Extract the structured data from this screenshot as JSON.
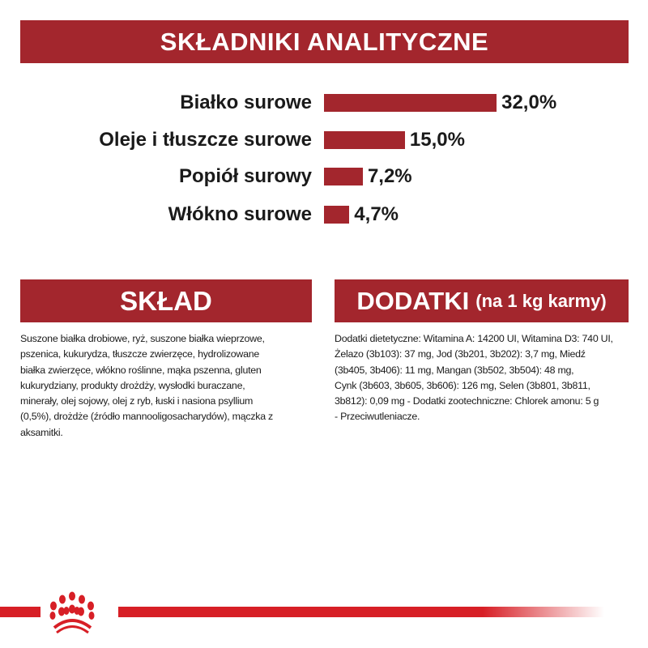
{
  "header": {
    "title": "SKŁADNIKI ANALITYCZNE"
  },
  "chart_data": {
    "type": "bar",
    "orientation": "horizontal",
    "categories": [
      "Białko surowe",
      "Oleje i tłuszcze surowe",
      "Popiół surowy",
      "Włókno surowe"
    ],
    "values": [
      32.0,
      15.0,
      7.2,
      4.7
    ],
    "value_labels": [
      "32,0%",
      "15,0%",
      "7,2%",
      "4,7%"
    ],
    "unit": "%",
    "bar_color": "#a3262d",
    "grid": false
  },
  "sklad": {
    "title": "SKŁAD",
    "lines": [
      "Suszone białka drobiowe, ryż, suszone białka wieprzowe,",
      "pszenica, kukurydza, tłuszcze zwierzęce, hydrolizowane",
      "białka zwierzęce, włókno roślinne, mąka pszenna, gluten",
      "kukurydziany, produkty drożdży, wysłodki buraczane,",
      "minerały, olej sojowy, olej z ryb, łuski i nasiona psyllium",
      "(0,5%), drożdże (źródło mannooligosacharydów), mączka z",
      "aksamitki."
    ]
  },
  "dodatki": {
    "title": "DODATKI",
    "subtitle": "(na 1 kg karmy)",
    "lines": [
      "Dodatki dietetyczne: Witamina A: 14200 UI, Witamina D3: 740 UI,",
      "Żelazo (3b103): 37 mg, Jod (3b201, 3b202): 3,7 mg, Miedź",
      "(3b405, 3b406): 11 mg, Mangan (3b502, 3b504): 48 mg,",
      "Cynk (3b603, 3b605, 3b606): 126 mg, Selen (3b801, 3b811,",
      "3b812): 0,09 mg - Dodatki zootechniczne: Chlorek amonu: 5 g",
      "- Przeciwutleniacze."
    ]
  },
  "colors": {
    "brand_red": "#a3262d",
    "footer_red": "#d71f26"
  },
  "footer": {
    "logo_icon": "royal-canin-crown-icon"
  }
}
